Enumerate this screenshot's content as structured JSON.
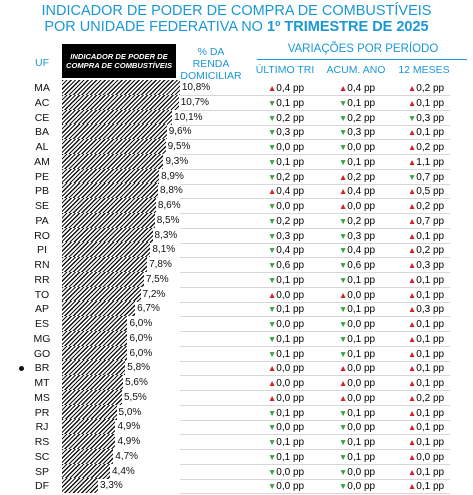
{
  "chart_data": {
    "type": "bar",
    "title": "INDICADOR DE PODER DE COMPRA DE COMBUSTÍVEIS",
    "subtitle_prefix": "POR UNIDADE FEDERATIVA NO ",
    "subtitle_period": "1º TRIMESTRE DE 2025",
    "headers": {
      "uf": "UF",
      "index": "INDICADOR DE PODER DE COMPRA DE COMBUSTÍVEIS",
      "share": "% DA RENDA DOMICILIAR",
      "variations": "VARIAÇÕES POR PERÍODO",
      "last_quarter": "ÚLTIMO TRI",
      "ytd": "ACUM. ANO",
      "twelve_months": "12 MESES"
    },
    "highlight": "BR",
    "unit_suffix": "pp",
    "categories": [
      "MA",
      "AC",
      "CE",
      "BA",
      "AL",
      "AM",
      "PE",
      "PB",
      "SE",
      "PA",
      "RO",
      "PI",
      "RN",
      "RR",
      "TO",
      "AP",
      "ES",
      "MG",
      "GO",
      "BR",
      "MT",
      "MS",
      "PR",
      "RJ",
      "RS",
      "SC",
      "SP",
      "DF"
    ],
    "values": [
      10.8,
      10.7,
      10.1,
      9.6,
      9.5,
      9.3,
      8.9,
      8.8,
      8.6,
      8.5,
      8.3,
      8.1,
      7.8,
      7.5,
      7.2,
      6.7,
      6.0,
      6.0,
      6.0,
      5.8,
      5.6,
      5.5,
      5.0,
      4.9,
      4.9,
      4.7,
      4.4,
      3.3
    ],
    "value_labels": [
      "10,8%",
      "10,7%",
      "10,1%",
      "9,6%",
      "9,5%",
      "9,3%",
      "8,9%",
      "8,8%",
      "8,6%",
      "8,5%",
      "8,3%",
      "8,1%",
      "7,8%",
      "7,5%",
      "7,2%",
      "6,7%",
      "6,0%",
      "6,0%",
      "6,0%",
      "5,8%",
      "5,6%",
      "5,5%",
      "5,0%",
      "4,9%",
      "4,9%",
      "4,7%",
      "4,4%",
      "3,3%"
    ],
    "last_quarter": [
      0.4,
      -0.1,
      -0.2,
      -0.3,
      -0.0,
      -0.1,
      0.2,
      0.4,
      0.0,
      -0.2,
      -0.3,
      -0.4,
      -0.6,
      -0.1,
      0.0,
      -0.1,
      -0.0,
      -0.1,
      -0.1,
      0.0,
      0.0,
      0.0,
      -0.1,
      -0.0,
      -0.1,
      -0.1,
      -0.0,
      -0.0
    ],
    "last_quarter_labels": [
      "0,4 pp",
      "0,1 pp",
      "0,2 pp",
      "0,3 pp",
      "0,0 pp",
      "0,1 pp",
      "0,2 pp",
      "0,4 pp",
      "0,0 pp",
      "0,2 pp",
      "0,3 pp",
      "0,4 pp",
      "0,6 pp",
      "0,1 pp",
      "0,0 pp",
      "0,1 pp",
      "0,0 pp",
      "0,1 pp",
      "0,1 pp",
      "0,0 pp",
      "0,0 pp",
      "0,0 pp",
      "0,1 pp",
      "0,0 pp",
      "0,1 pp",
      "0,1 pp",
      "0,0 pp",
      "0,0 pp"
    ],
    "ytd": [
      0.4,
      -0.1,
      -0.2,
      -0.3,
      -0.0,
      -0.1,
      0.2,
      0.4,
      0.0,
      -0.2,
      -0.3,
      -0.4,
      -0.6,
      -0.1,
      0.0,
      -0.1,
      -0.0,
      -0.1,
      -0.1,
      0.0,
      0.0,
      0.0,
      -0.1,
      -0.0,
      -0.1,
      -0.1,
      -0.0,
      -0.0
    ],
    "ytd_labels": [
      "0,4 pp",
      "0,1 pp",
      "0,2 pp",
      "0,3 pp",
      "0,0 pp",
      "0,1 pp",
      "0,2 pp",
      "0,4 pp",
      "0,0 pp",
      "0,2 pp",
      "0,3 pp",
      "0,4 pp",
      "0,6 pp",
      "0,1 pp",
      "0,0 pp",
      "0,1 pp",
      "0,0 pp",
      "0,1 pp",
      "0,1 pp",
      "0,0 pp",
      "0,0 pp",
      "0,0 pp",
      "0,1 pp",
      "0,0 pp",
      "0,1 pp",
      "0,1 pp",
      "0,0 pp",
      "0,0 pp"
    ],
    "twelve_months": [
      0.2,
      0.1,
      -0.3,
      0.1,
      -0.2,
      1.1,
      -0.7,
      0.5,
      0.2,
      0.7,
      0.1,
      0.2,
      0.3,
      0.1,
      0.1,
      0.3,
      0.1,
      0.1,
      0.1,
      0.1,
      0.1,
      0.2,
      0.1,
      0.1,
      0.1,
      0.0,
      0.1,
      0.1
    ],
    "twelve_months_labels": [
      "0,2 pp",
      "0,1 pp",
      "0,3 pp",
      "0,1 pp",
      "0,2 pp",
      "1,1 pp",
      "0,7 pp",
      "0,5 pp",
      "0,2 pp",
      "0,7 pp",
      "0,1 pp",
      "0,2 pp",
      "0,3 pp",
      "0,1 pp",
      "0,1 pp",
      "0,3 pp",
      "0,1 pp",
      "0,1 pp",
      "0,1 pp",
      "0,1 pp",
      "0,1 pp",
      "0,2 pp",
      "0,1 pp",
      "0,1 pp",
      "0,1 pp",
      "0,0 pp",
      "0,1 pp",
      "0,1 pp"
    ],
    "xlim": [
      0,
      11
    ],
    "colors": {
      "accent": "#1a98d5",
      "up": "#d61f26",
      "down": "#3aa23c",
      "bar": "#111111"
    }
  }
}
